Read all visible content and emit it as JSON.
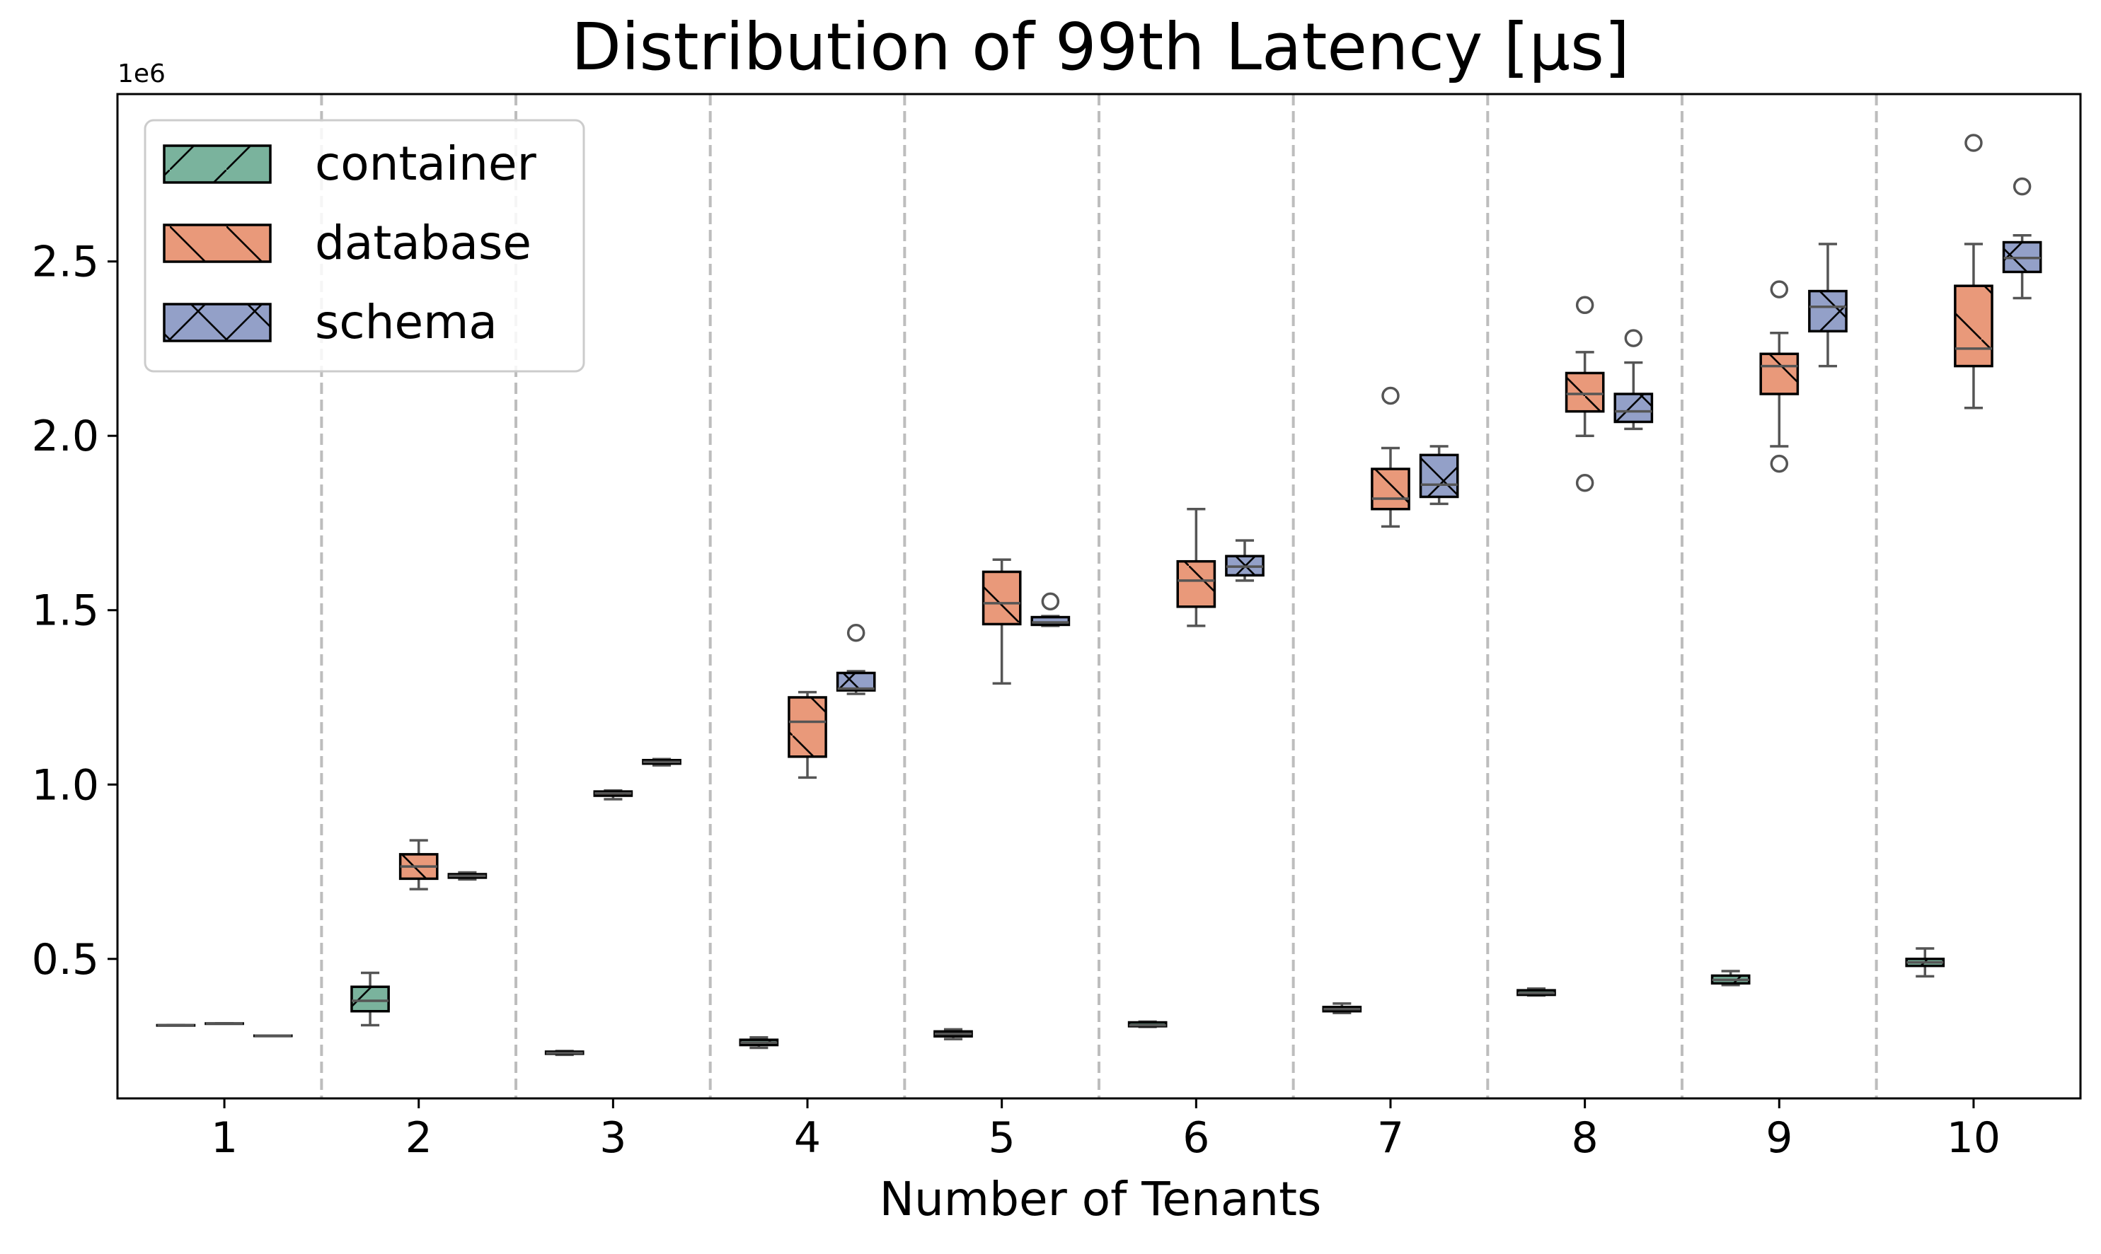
{
  "chart_data": {
    "type": "box",
    "title": "Distribution of 99th Latency [μs]",
    "xlabel": "Number of Tenants",
    "ylabel": "",
    "y_offset_label": "1e6",
    "categories": [
      "1",
      "2",
      "3",
      "4",
      "5",
      "6",
      "7",
      "8",
      "9",
      "10"
    ],
    "ylim": [
      0.1,
      2.98
    ],
    "yticks": [
      0.5,
      1.0,
      1.5,
      2.0,
      2.5
    ],
    "ytick_labels": [
      "0.5",
      "1.0",
      "1.5",
      "2.0",
      "2.5"
    ],
    "grid": "vertical dashed separators between categories",
    "legend": {
      "position": "top-left",
      "entries": [
        "container",
        "database",
        "schema"
      ]
    },
    "series": [
      {
        "name": "container",
        "color": "#7ab39d",
        "hatch": "diagonal-forward",
        "boxes": [
          {
            "category": "1",
            "min": 0.31,
            "q1": 0.31,
            "median": 0.31,
            "q3": 0.31,
            "max": 0.31,
            "outliers": []
          },
          {
            "category": "2",
            "min": 0.31,
            "q1": 0.35,
            "median": 0.38,
            "q3": 0.42,
            "max": 0.46,
            "outliers": []
          },
          {
            "category": "3",
            "min": 0.225,
            "q1": 0.228,
            "median": 0.23,
            "q3": 0.234,
            "max": 0.236,
            "outliers": []
          },
          {
            "category": "4",
            "min": 0.245,
            "q1": 0.253,
            "median": 0.26,
            "q3": 0.268,
            "max": 0.275,
            "outliers": []
          },
          {
            "category": "5",
            "min": 0.27,
            "q1": 0.278,
            "median": 0.285,
            "q3": 0.292,
            "max": 0.298,
            "outliers": []
          },
          {
            "category": "6",
            "min": 0.305,
            "q1": 0.307,
            "median": 0.31,
            "q3": 0.318,
            "max": 0.32,
            "outliers": []
          },
          {
            "category": "7",
            "min": 0.345,
            "q1": 0.35,
            "median": 0.356,
            "q3": 0.362,
            "max": 0.372,
            "outliers": []
          },
          {
            "category": "8",
            "min": 0.395,
            "q1": 0.397,
            "median": 0.402,
            "q3": 0.41,
            "max": 0.415,
            "outliers": []
          },
          {
            "category": "9",
            "min": 0.425,
            "q1": 0.43,
            "median": 0.44,
            "q3": 0.452,
            "max": 0.465,
            "outliers": []
          },
          {
            "category": "10",
            "min": 0.45,
            "q1": 0.48,
            "median": 0.49,
            "q3": 0.5,
            "max": 0.53,
            "outliers": []
          }
        ]
      },
      {
        "name": "database",
        "color": "#e9997a",
        "hatch": "diagonal-back",
        "boxes": [
          {
            "category": "1",
            "min": 0.315,
            "q1": 0.315,
            "median": 0.315,
            "q3": 0.315,
            "max": 0.315,
            "outliers": []
          },
          {
            "category": "2",
            "min": 0.7,
            "q1": 0.73,
            "median": 0.765,
            "q3": 0.8,
            "max": 0.84,
            "outliers": []
          },
          {
            "category": "3",
            "min": 0.958,
            "q1": 0.968,
            "median": 0.975,
            "q3": 0.98,
            "max": 0.983,
            "outliers": []
          },
          {
            "category": "4",
            "min": 1.02,
            "q1": 1.08,
            "median": 1.18,
            "q3": 1.25,
            "max": 1.265,
            "outliers": []
          },
          {
            "category": "5",
            "min": 1.29,
            "q1": 1.46,
            "median": 1.52,
            "q3": 1.61,
            "max": 1.645,
            "outliers": []
          },
          {
            "category": "6",
            "min": 1.455,
            "q1": 1.51,
            "median": 1.585,
            "q3": 1.64,
            "max": 1.79,
            "outliers": []
          },
          {
            "category": "7",
            "min": 1.74,
            "q1": 1.79,
            "median": 1.82,
            "q3": 1.905,
            "max": 1.965,
            "outliers": [
              2.115
            ]
          },
          {
            "category": "8",
            "min": 2.0,
            "q1": 2.07,
            "median": 2.12,
            "q3": 2.18,
            "max": 2.24,
            "outliers": [
              2.375,
              1.865
            ]
          },
          {
            "category": "9",
            "min": 1.97,
            "q1": 2.12,
            "median": 2.2,
            "q3": 2.235,
            "max": 2.295,
            "outliers": [
              2.42,
              1.92
            ]
          },
          {
            "category": "10",
            "min": 2.08,
            "q1": 2.2,
            "median": 2.25,
            "q3": 2.43,
            "max": 2.55,
            "outliers": [
              2.84
            ]
          }
        ]
      },
      {
        "name": "schema",
        "color": "#93a0c8",
        "hatch": "cross",
        "boxes": [
          {
            "category": "1",
            "min": 0.28,
            "q1": 0.28,
            "median": 0.28,
            "q3": 0.28,
            "max": 0.28,
            "outliers": []
          },
          {
            "category": "2",
            "min": 0.728,
            "q1": 0.733,
            "median": 0.738,
            "q3": 0.743,
            "max": 0.748,
            "outliers": []
          },
          {
            "category": "3",
            "min": 1.055,
            "q1": 1.06,
            "median": 1.065,
            "q3": 1.07,
            "max": 1.073,
            "outliers": []
          },
          {
            "category": "4",
            "min": 1.26,
            "q1": 1.27,
            "median": 1.275,
            "q3": 1.32,
            "max": 1.325,
            "outliers": [
              1.435
            ]
          },
          {
            "category": "5",
            "min": 1.455,
            "q1": 1.458,
            "median": 1.465,
            "q3": 1.48,
            "max": 1.483,
            "outliers": [
              1.525
            ]
          },
          {
            "category": "6",
            "min": 1.585,
            "q1": 1.6,
            "median": 1.625,
            "q3": 1.655,
            "max": 1.7,
            "outliers": []
          },
          {
            "category": "7",
            "min": 1.805,
            "q1": 1.825,
            "median": 1.86,
            "q3": 1.945,
            "max": 1.97,
            "outliers": []
          },
          {
            "category": "8",
            "min": 2.02,
            "q1": 2.04,
            "median": 2.07,
            "q3": 2.12,
            "max": 2.21,
            "outliers": [
              2.28
            ]
          },
          {
            "category": "9",
            "min": 2.2,
            "q1": 2.3,
            "median": 2.37,
            "q3": 2.415,
            "max": 2.55,
            "outliers": []
          },
          {
            "category": "10",
            "min": 2.395,
            "q1": 2.47,
            "median": 2.51,
            "q3": 2.555,
            "max": 2.575,
            "outliers": [
              2.715
            ]
          }
        ]
      }
    ]
  }
}
